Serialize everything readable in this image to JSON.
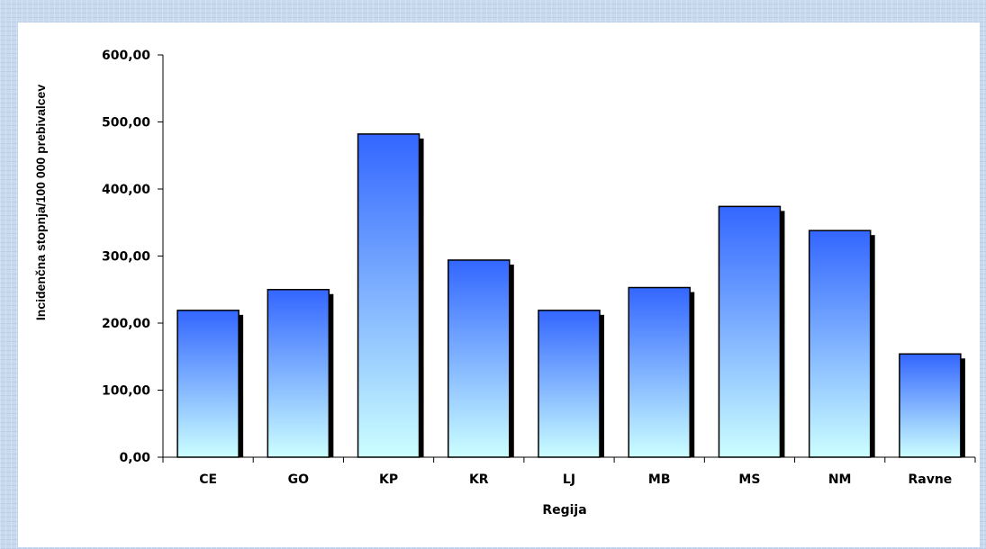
{
  "chart_data": {
    "type": "bar",
    "title": "",
    "xlabel": "Regija",
    "ylabel": "Incidenčna stopnja/100 000 prebivalcev",
    "categories": [
      "CE",
      "GO",
      "KP",
      "KR",
      "LJ",
      "MB",
      "MS",
      "NM",
      "Ravne"
    ],
    "values": [
      219,
      250,
      482,
      294,
      219,
      253,
      374,
      338,
      154
    ],
    "ylim": [
      0,
      600
    ],
    "yticks": [
      "0,00",
      "100,00",
      "200,00",
      "300,00",
      "400,00",
      "500,00",
      "600,00"
    ],
    "grid": false,
    "legend": "none",
    "colors": {
      "bar_top": "#3366ff",
      "bar_bottom": "#ccffff",
      "bar_shadow": "#000000",
      "background": "#c9d9ee"
    }
  }
}
